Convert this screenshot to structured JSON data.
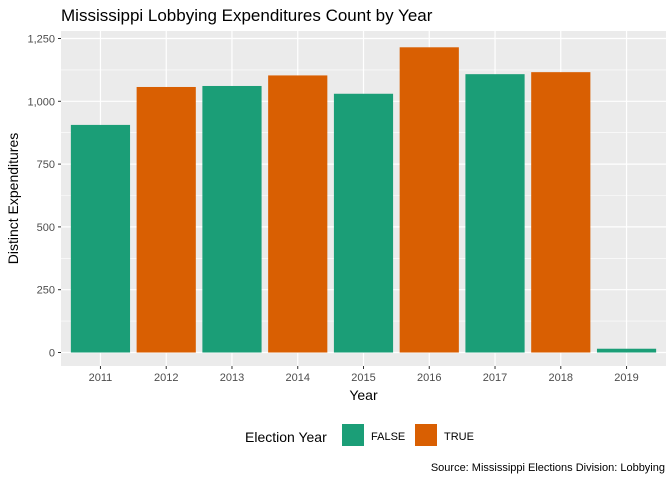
{
  "chart_data": {
    "type": "bar",
    "title": "Mississippi Lobbying Expenditures Count by Year",
    "xlabel": "Year",
    "ylabel": "Distinct Expenditures",
    "caption": "Source: Mississippi Elections Division: Lobbying",
    "categories": [
      "2011",
      "2012",
      "2013",
      "2014",
      "2015",
      "2016",
      "2017",
      "2018",
      "2019"
    ],
    "values": [
      906,
      1057,
      1061,
      1103,
      1030,
      1215,
      1108,
      1116,
      15
    ],
    "election_year": [
      "FALSE",
      "TRUE",
      "FALSE",
      "TRUE",
      "FALSE",
      "TRUE",
      "FALSE",
      "TRUE",
      "FALSE"
    ],
    "ylim": [
      0,
      1250
    ],
    "yticks": [
      0,
      250,
      500,
      750,
      1000,
      1250
    ],
    "ytick_labels": [
      "0",
      "250",
      "500",
      "750",
      "1,000",
      "1,250"
    ],
    "grid": true,
    "legend": {
      "title": "Election Year",
      "position": "bottom",
      "entries": [
        {
          "label": "FALSE",
          "color": "#1b9e77"
        },
        {
          "label": "TRUE",
          "color": "#d95f02"
        }
      ]
    },
    "colors": {
      "FALSE": "#1b9e77",
      "TRUE": "#d95f02",
      "panel": "#ebebeb",
      "grid": "#ffffff"
    }
  }
}
